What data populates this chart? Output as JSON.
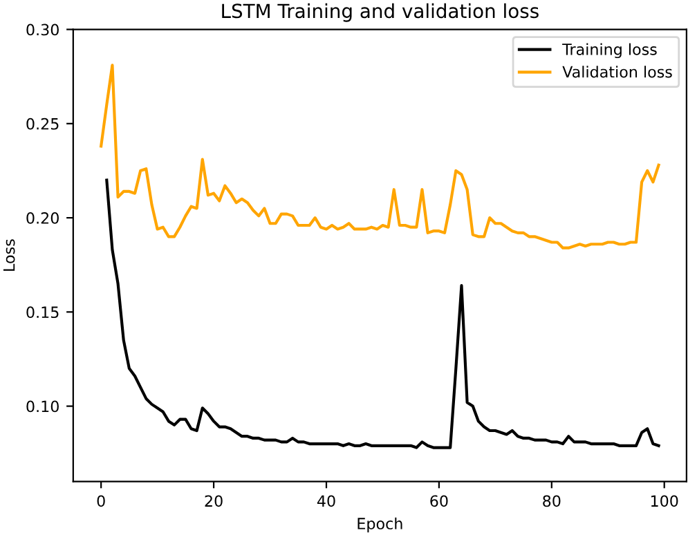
{
  "chart_data": {
    "type": "line",
    "title": "LSTM Training and validation loss",
    "xlabel": "Epoch",
    "ylabel": "Loss",
    "x": [
      0,
      1,
      2,
      3,
      4,
      5,
      6,
      7,
      8,
      9,
      10,
      11,
      12,
      13,
      14,
      15,
      16,
      17,
      18,
      19,
      20,
      21,
      22,
      23,
      24,
      25,
      26,
      27,
      28,
      29,
      30,
      31,
      32,
      33,
      34,
      35,
      36,
      37,
      38,
      39,
      40,
      41,
      42,
      43,
      44,
      45,
      46,
      47,
      48,
      49,
      50,
      51,
      52,
      53,
      54,
      55,
      56,
      57,
      58,
      59,
      60,
      61,
      62,
      63,
      64,
      65,
      66,
      67,
      68,
      69,
      70,
      71,
      72,
      73,
      74,
      75,
      76,
      77,
      78,
      79,
      80,
      81,
      82,
      83,
      84,
      85,
      86,
      87,
      88,
      89,
      90,
      91,
      92,
      93,
      94,
      95,
      96,
      97,
      98,
      99
    ],
    "series": [
      {
        "name": "Training loss",
        "color": "#000000",
        "values": [
          null,
          0.22,
          0.183,
          0.165,
          0.135,
          0.12,
          0.116,
          0.11,
          0.104,
          0.101,
          0.099,
          0.097,
          0.092,
          0.09,
          0.093,
          0.093,
          0.088,
          0.087,
          0.099,
          0.096,
          0.092,
          0.089,
          0.089,
          0.088,
          0.086,
          0.084,
          0.084,
          0.083,
          0.083,
          0.082,
          0.082,
          0.082,
          0.081,
          0.081,
          0.083,
          0.081,
          0.081,
          0.08,
          0.08,
          0.08,
          0.08,
          0.08,
          0.08,
          0.079,
          0.08,
          0.079,
          0.079,
          0.08,
          0.079,
          0.079,
          0.079,
          0.079,
          0.079,
          0.079,
          0.079,
          0.079,
          0.078,
          0.081,
          0.079,
          0.078,
          0.078,
          0.078,
          0.078,
          0.12,
          0.164,
          0.102,
          0.1,
          0.092,
          0.089,
          0.087,
          0.087,
          0.086,
          0.085,
          0.087,
          0.084,
          0.083,
          0.083,
          0.082,
          0.082,
          0.082,
          0.081,
          0.081,
          0.08,
          0.084,
          0.081,
          0.081,
          0.081,
          0.08,
          0.08,
          0.08,
          0.08,
          0.08,
          0.079,
          0.079,
          0.079,
          0.079,
          0.086,
          0.088,
          0.08,
          0.079
        ]
      },
      {
        "name": "Validation loss",
        "color": "#ffa500",
        "values": [
          0.238,
          0.26,
          0.281,
          0.211,
          0.214,
          0.214,
          0.213,
          0.225,
          0.226,
          0.207,
          0.194,
          0.195,
          0.19,
          0.19,
          0.195,
          0.201,
          0.206,
          0.205,
          0.231,
          0.212,
          0.213,
          0.209,
          0.217,
          0.213,
          0.208,
          0.21,
          0.208,
          0.204,
          0.201,
          0.205,
          0.197,
          0.197,
          0.202,
          0.202,
          0.201,
          0.196,
          0.196,
          0.196,
          0.2,
          0.195,
          0.194,
          0.196,
          0.194,
          0.195,
          0.197,
          0.194,
          0.194,
          0.194,
          0.195,
          0.194,
          0.196,
          0.195,
          0.215,
          0.196,
          0.196,
          0.195,
          0.195,
          0.215,
          0.192,
          0.193,
          0.193,
          0.192,
          0.207,
          0.225,
          0.223,
          0.215,
          0.191,
          0.19,
          0.19,
          0.2,
          0.197,
          0.197,
          0.195,
          0.193,
          0.192,
          0.192,
          0.19,
          0.19,
          0.189,
          0.188,
          0.187,
          0.187,
          0.184,
          0.184,
          0.185,
          0.186,
          0.185,
          0.186,
          0.186,
          0.186,
          0.187,
          0.187,
          0.186,
          0.186,
          0.187,
          0.187,
          0.219,
          0.225,
          0.219,
          0.228
        ]
      }
    ],
    "xlim": [
      -4.95,
      103.95
    ],
    "xticks": [
      0,
      20,
      40,
      60,
      80,
      100
    ],
    "ylim": [
      0.06,
      0.3
    ],
    "yticks": [
      {
        "value": 0.1,
        "label": "0.10"
      },
      {
        "value": 0.15,
        "label": "0.15"
      },
      {
        "value": 0.2,
        "label": "0.20"
      },
      {
        "value": 0.25,
        "label": "0.25"
      },
      {
        "value": 0.3,
        "label": "0.30"
      }
    ],
    "legend": "top right",
    "grid": false
  }
}
